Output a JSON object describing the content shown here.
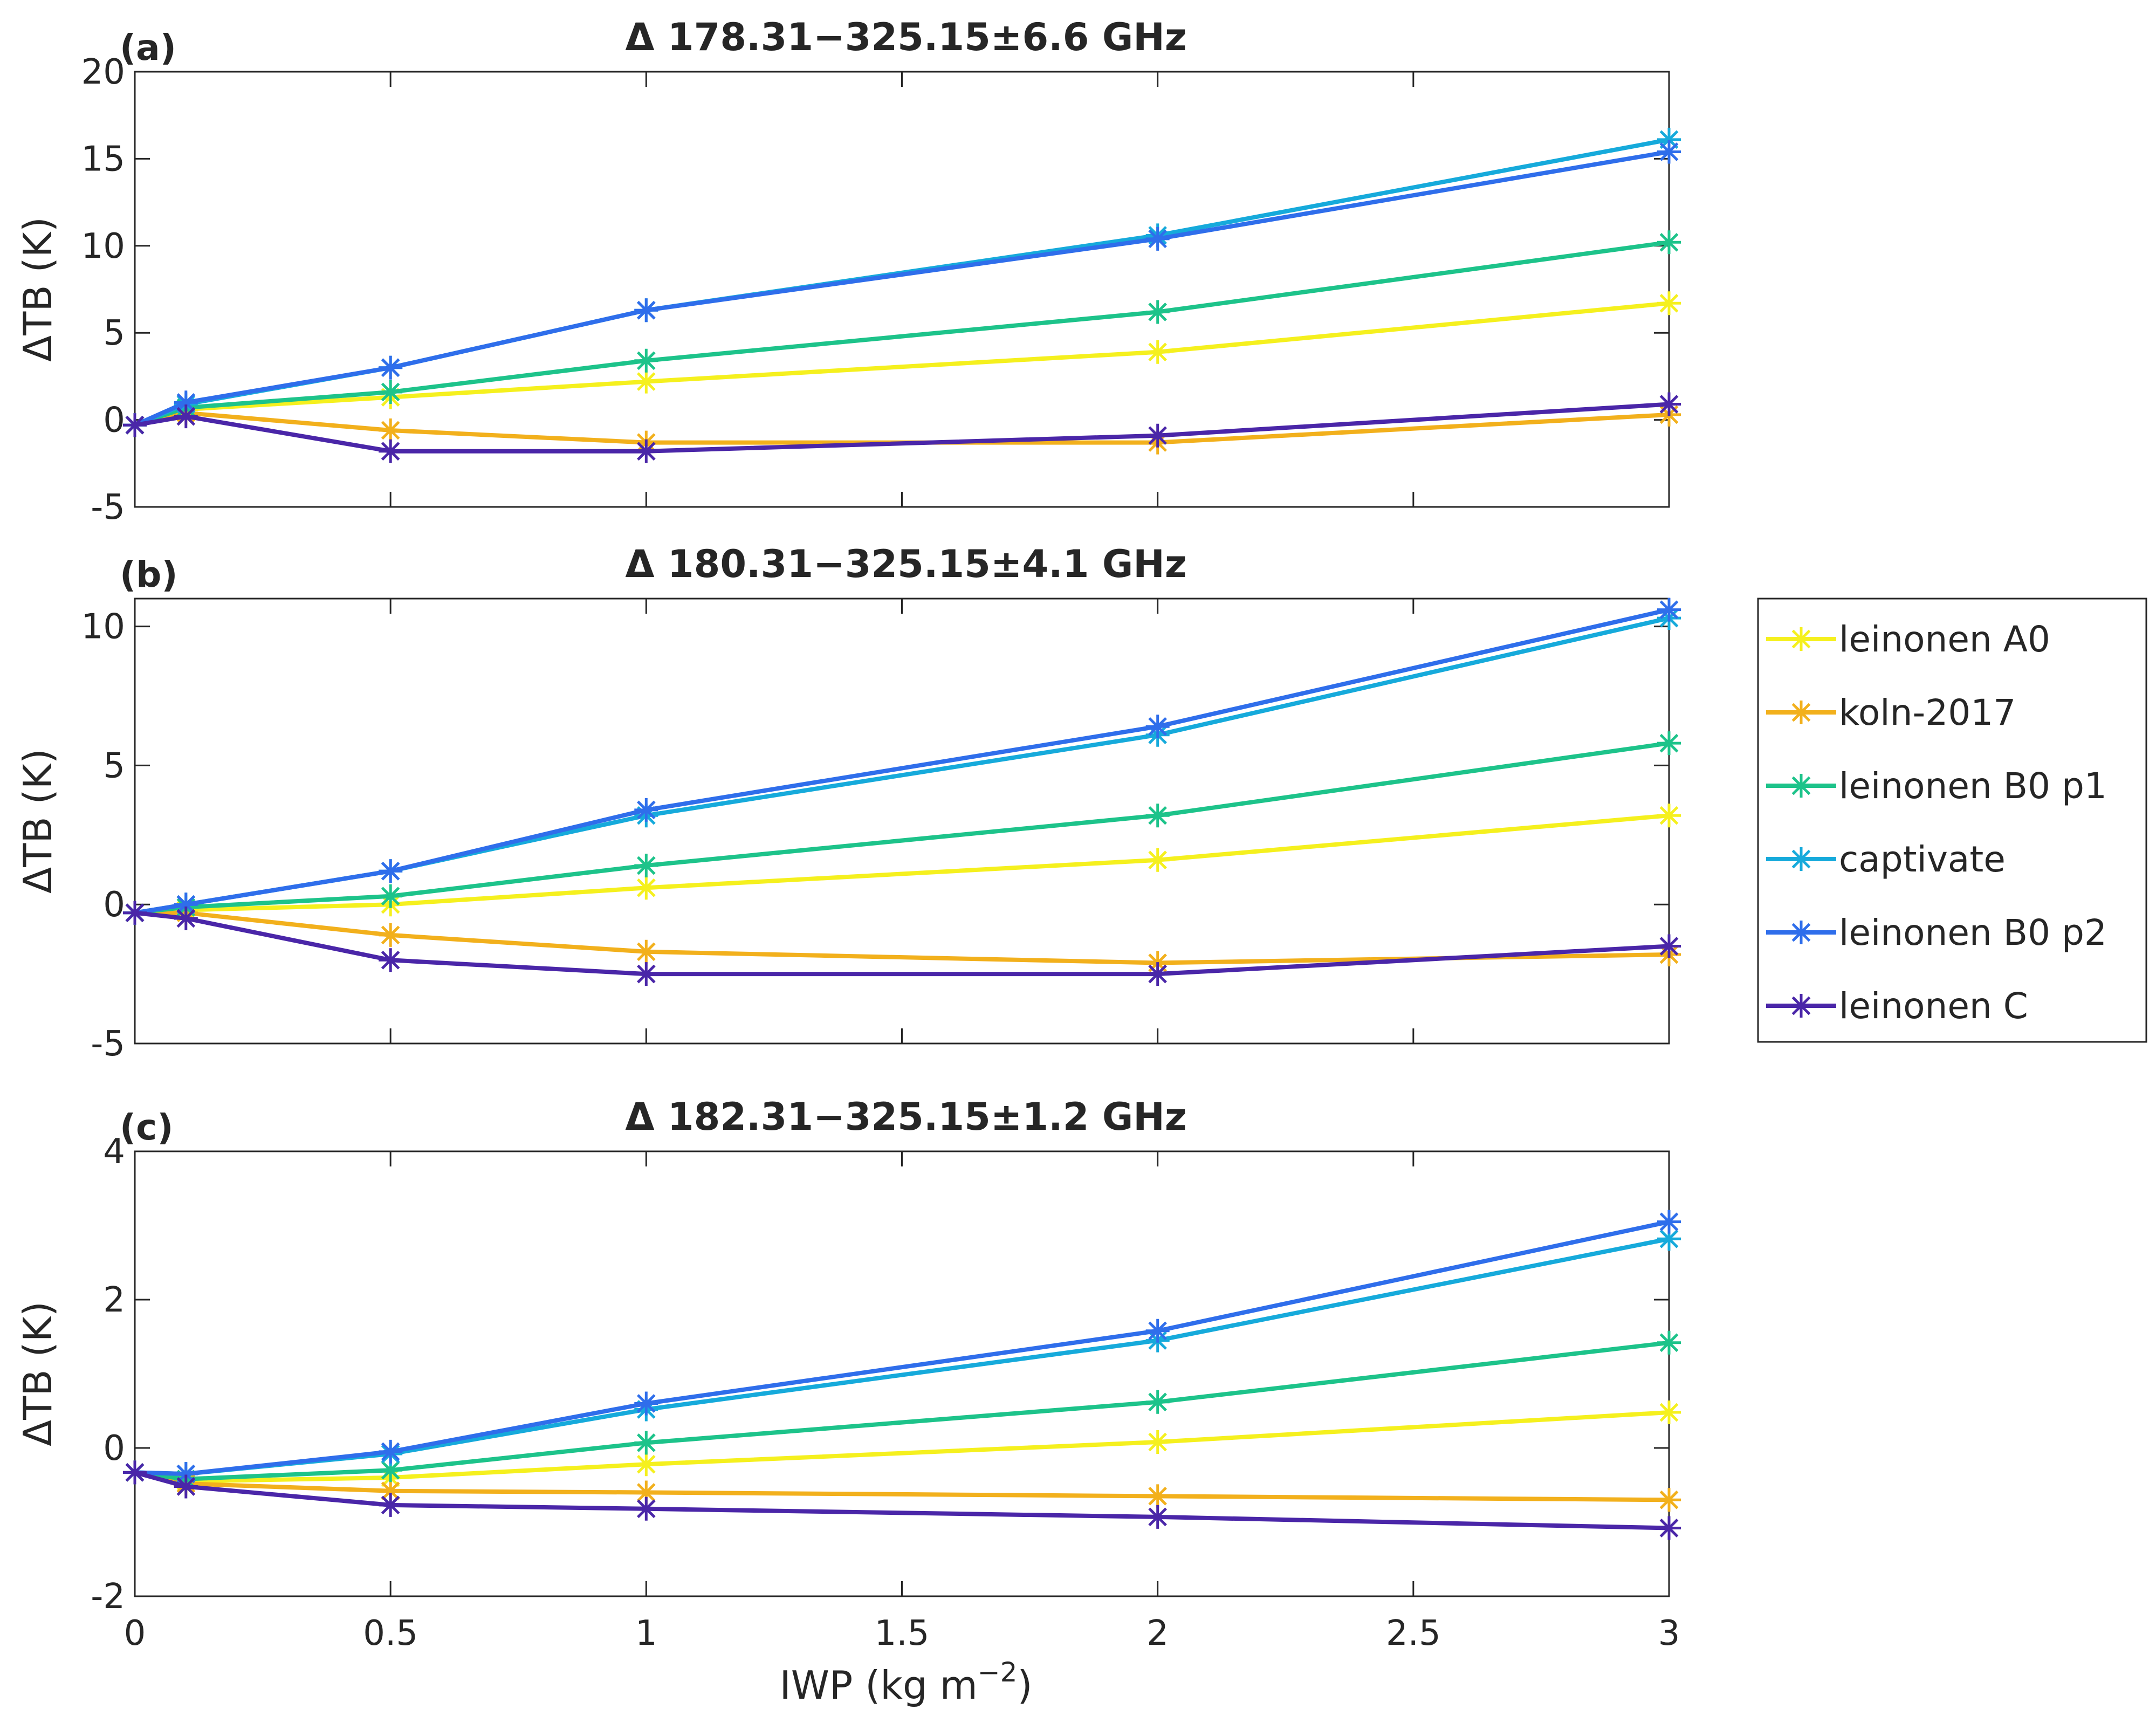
{
  "chart_data": {
    "type": "line",
    "xlabel": "IWP (kg m^-2)",
    "xlabel_parts": {
      "base": "IWP (kg m",
      "exponent": "−2",
      "close": ")"
    },
    "xlim": [
      0,
      3
    ],
    "xticks": [
      "0",
      "0.5",
      "1",
      "1.5",
      "2",
      "2.5",
      "3"
    ],
    "xtick_values": [
      0,
      0.5,
      1,
      1.5,
      2,
      2.5,
      3
    ],
    "x": [
      0,
      0.1,
      0.5,
      1,
      2,
      3
    ],
    "legend": {
      "position": "right",
      "entries": [
        "leinonen A0",
        "koln-2017",
        "leinonen B0 p1",
        "captivate",
        "leinonen B0 p2",
        "leinonen C"
      ]
    },
    "panels": [
      {
        "letter": "(a)",
        "title": "Δ 178.31−325.15±6.6 GHz",
        "ylabel": "ΔTB (K)",
        "ylim": [
          -5,
          20
        ],
        "yticks": [
          "-5",
          "0",
          "5",
          "10",
          "15",
          "20"
        ],
        "ytick_values": [
          -5,
          0,
          5,
          10,
          15,
          20
        ],
        "series": [
          {
            "name": "leinonen A0",
            "color": "#F5F01E",
            "values": [
              -0.3,
              0.6,
              1.3,
              2.2,
              3.9,
              6.7
            ]
          },
          {
            "name": "koln-2017",
            "color": "#F2B01C",
            "values": [
              -0.3,
              0.4,
              -0.6,
              -1.3,
              -1.3,
              0.3
            ]
          },
          {
            "name": "leinonen B0 p1",
            "color": "#1DC38A",
            "values": [
              -0.3,
              0.7,
              1.6,
              3.4,
              6.2,
              10.2
            ]
          },
          {
            "name": "captivate",
            "color": "#16AADB",
            "values": [
              -0.3,
              0.9,
              3.0,
              6.3,
              10.6,
              16.1
            ]
          },
          {
            "name": "leinonen B0 p2",
            "color": "#2F6EEB",
            "values": [
              -0.3,
              1.0,
              3.0,
              6.3,
              10.4,
              15.4
            ]
          },
          {
            "name": "leinonen C",
            "color": "#4A26A8",
            "values": [
              -0.3,
              0.2,
              -1.8,
              -1.8,
              -0.9,
              0.9
            ]
          }
        ]
      },
      {
        "letter": "(b)",
        "title": "Δ 180.31−325.15±4.1 GHz",
        "ylabel": "ΔTB (K)",
        "ylim": [
          -5,
          11
        ],
        "yticks": [
          "-5",
          "0",
          "5",
          "10"
        ],
        "ytick_values": [
          -5,
          0,
          5,
          10
        ],
        "series": [
          {
            "name": "leinonen A0",
            "color": "#F5F01E",
            "values": [
              -0.3,
              -0.2,
              0.0,
              0.6,
              1.6,
              3.2
            ]
          },
          {
            "name": "koln-2017",
            "color": "#F2B01C",
            "values": [
              -0.3,
              -0.3,
              -1.1,
              -1.7,
              -2.1,
              -1.8
            ]
          },
          {
            "name": "leinonen B0 p1",
            "color": "#1DC38A",
            "values": [
              -0.3,
              -0.1,
              0.3,
              1.4,
              3.2,
              5.8
            ]
          },
          {
            "name": "captivate",
            "color": "#16AADB",
            "values": [
              -0.3,
              0.0,
              1.2,
              3.2,
              6.1,
              10.3
            ]
          },
          {
            "name": "leinonen B0 p2",
            "color": "#2F6EEB",
            "values": [
              -0.3,
              0.0,
              1.2,
              3.4,
              6.4,
              10.6
            ]
          },
          {
            "name": "leinonen C",
            "color": "#4A26A8",
            "values": [
              -0.3,
              -0.5,
              -2.0,
              -2.5,
              -2.5,
              -1.5
            ]
          }
        ]
      },
      {
        "letter": "(c)",
        "title": "Δ 182.31−325.15±1.2 GHz",
        "ylabel": "ΔTB (K)",
        "ylim": [
          -2,
          4
        ],
        "yticks": [
          "-2",
          "0",
          "2",
          "4"
        ],
        "ytick_values": [
          -2,
          0,
          2,
          4
        ],
        "series": [
          {
            "name": "leinonen A0",
            "color": "#F5F01E",
            "values": [
              -0.33,
              -0.45,
              -0.4,
              -0.22,
              0.08,
              0.48
            ]
          },
          {
            "name": "koln-2017",
            "color": "#F2B01C",
            "values": [
              -0.33,
              -0.48,
              -0.58,
              -0.6,
              -0.65,
              -0.7
            ]
          },
          {
            "name": "leinonen B0 p1",
            "color": "#1DC38A",
            "values": [
              -0.33,
              -0.42,
              -0.3,
              0.07,
              0.62,
              1.42
            ]
          },
          {
            "name": "captivate",
            "color": "#16AADB",
            "values": [
              -0.33,
              -0.35,
              -0.08,
              0.52,
              1.45,
              2.82
            ]
          },
          {
            "name": "leinonen B0 p2",
            "color": "#2F6EEB",
            "values": [
              -0.33,
              -0.35,
              -0.05,
              0.6,
              1.58,
              3.05
            ]
          },
          {
            "name": "leinonen C",
            "color": "#4A26A8",
            "values": [
              -0.33,
              -0.52,
              -0.77,
              -0.82,
              -0.93,
              -1.08
            ]
          }
        ]
      }
    ]
  }
}
